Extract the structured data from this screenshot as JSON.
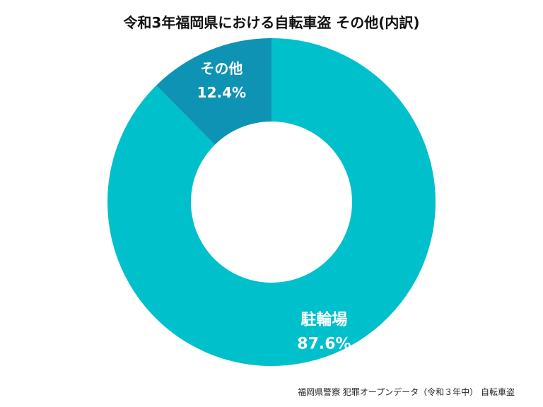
{
  "chart_data": {
    "type": "pie",
    "title": "令和3年福岡県における自転車盗 その他(内訳)",
    "slices": [
      {
        "label": "その他",
        "value": 12.4,
        "display": "12.4%",
        "color": "#0e93b4"
      },
      {
        "label": "駐輪場",
        "value": 87.6,
        "display": "87.6%",
        "color": "#00c0cc"
      }
    ],
    "donut": true,
    "start_angle_deg": 0,
    "direction": "counterclockwise",
    "legend": "none",
    "source": "福岡県警察 犯罪オープンデータ（令和３年中） 自転車盗"
  }
}
